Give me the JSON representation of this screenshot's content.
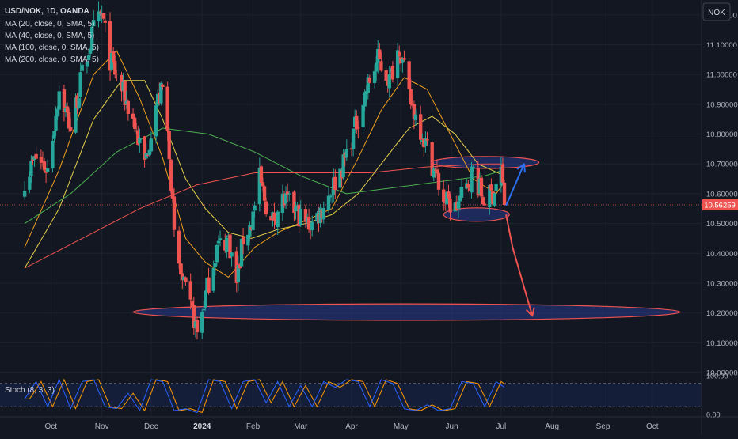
{
  "header": {
    "symbol_line": "USD/NOK, 1D, OANDA",
    "currency_button": "NOK",
    "indicators": [
      "MA (20, close, 0, SMA, 5)",
      "MA (40, close, 0, SMA, 5)",
      "MA (100, close, 0, SMA, 5)",
      "MA (200, close, 0, SMA, 5)"
    ]
  },
  "colors": {
    "background": "#131722",
    "grid": "#1e222d",
    "up": "#26a69a",
    "down": "#ef5350",
    "ma20": "#f0a01e",
    "ma40": "#e6d04a",
    "ma100": "#4caf50",
    "ma200": "#ef5350",
    "zone_fill": "#2a3a8c",
    "arrow_up": "#2e6ff2",
    "arrow_down": "#ef5350",
    "stoch_k": "#2962ff",
    "stoch_d": "#ff9800"
  },
  "chart_data": {
    "type": "candlestick",
    "title": "USD/NOK, 1D, OANDA",
    "y_axis": {
      "min": 10.0,
      "max": 11.25,
      "ticks": [
        11.2,
        11.1,
        11.0,
        10.9,
        10.8,
        10.7,
        10.6,
        10.5,
        10.4,
        10.3,
        10.2,
        10.1,
        10.0
      ],
      "tick_labels": [
        "11.20000",
        "11.10000",
        "11.00000",
        "10.90000",
        "10.80000",
        "10.70000",
        "10.60000",
        "10.50000",
        "10.40000",
        "10.30000",
        "10.20000",
        "10.10000",
        "10.00000"
      ]
    },
    "x_axis": {
      "labels": [
        "Oct",
        "Nov",
        "Dec",
        "2024",
        "Feb",
        "Mar",
        "Apr",
        "May",
        "Jun",
        "Jul",
        "Aug",
        "Sep",
        "Oct"
      ],
      "bold_label": "2024",
      "first_bar_date": "2023-09-15",
      "last_bar_date": "2024-07-03"
    },
    "last_price": "10.56259",
    "last_price_value": 10.56259,
    "price_anchors": [
      [
        "2023-09-15",
        10.65
      ],
      [
        "2023-09-22",
        10.72
      ],
      [
        "2023-09-29",
        10.68
      ],
      [
        "2023-10-06",
        10.95
      ],
      [
        "2023-10-13",
        10.82
      ],
      [
        "2023-10-20",
        11.0
      ],
      [
        "2023-10-27",
        11.15
      ],
      [
        "2023-11-01",
        11.2
      ],
      [
        "2023-11-06",
        11.05
      ],
      [
        "2023-11-13",
        10.95
      ],
      [
        "2023-11-20",
        10.85
      ],
      [
        "2023-11-27",
        10.7
      ],
      [
        "2023-12-04",
        10.9
      ],
      [
        "2023-12-08",
        10.95
      ],
      [
        "2023-12-12",
        10.75
      ],
      [
        "2023-12-15",
        10.45
      ],
      [
        "2023-12-20",
        10.3
      ],
      [
        "2023-12-27",
        10.18
      ],
      [
        "2023-12-29",
        10.13
      ],
      [
        "2024-01-03",
        10.26
      ],
      [
        "2024-01-10",
        10.42
      ],
      [
        "2024-01-17",
        10.45
      ],
      [
        "2024-01-22",
        10.3
      ],
      [
        "2024-01-26",
        10.45
      ],
      [
        "2024-01-31",
        10.5
      ],
      [
        "2024-02-05",
        10.65
      ],
      [
        "2024-02-12",
        10.5
      ],
      [
        "2024-02-19",
        10.58
      ],
      [
        "2024-02-26",
        10.55
      ],
      [
        "2024-03-04",
        10.5
      ],
      [
        "2024-03-08",
        10.5
      ],
      [
        "2024-03-14",
        10.55
      ],
      [
        "2024-03-20",
        10.62
      ],
      [
        "2024-03-27",
        10.7
      ],
      [
        "2024-04-03",
        10.82
      ],
      [
        "2024-04-10",
        10.95
      ],
      [
        "2024-04-17",
        11.05
      ],
      [
        "2024-04-24",
        10.98
      ],
      [
        "2024-04-30",
        11.1
      ],
      [
        "2024-05-06",
        10.92
      ],
      [
        "2024-05-13",
        10.82
      ],
      [
        "2024-05-20",
        10.7
      ],
      [
        "2024-05-27",
        10.58
      ],
      [
        "2024-06-03",
        10.55
      ],
      [
        "2024-06-10",
        10.62
      ],
      [
        "2024-06-14",
        10.68
      ],
      [
        "2024-06-20",
        10.58
      ],
      [
        "2024-06-26",
        10.6
      ],
      [
        "2024-07-01",
        10.68
      ],
      [
        "2024-07-03",
        10.56
      ]
    ],
    "moving_averages": [
      {
        "name": "MA (20, close, 0, SMA, 5)",
        "color_key": "ma20",
        "anchors": [
          [
            "2023-09-15",
            10.42
          ],
          [
            "2023-10-06",
            10.68
          ],
          [
            "2023-10-27",
            11.0
          ],
          [
            "2023-11-10",
            11.08
          ],
          [
            "2023-11-24",
            10.92
          ],
          [
            "2023-12-08",
            10.72
          ],
          [
            "2023-12-22",
            10.45
          ],
          [
            "2024-01-03",
            10.37
          ],
          [
            "2024-01-17",
            10.32
          ],
          [
            "2024-02-02",
            10.42
          ],
          [
            "2024-02-16",
            10.47
          ],
          [
            "2024-03-04",
            10.51
          ],
          [
            "2024-03-20",
            10.55
          ],
          [
            "2024-04-05",
            10.72
          ],
          [
            "2024-04-19",
            10.88
          ],
          [
            "2024-05-03",
            10.99
          ],
          [
            "2024-05-17",
            10.95
          ],
          [
            "2024-05-31",
            10.8
          ],
          [
            "2024-06-14",
            10.65
          ],
          [
            "2024-06-28",
            10.6
          ],
          [
            "2024-07-03",
            10.64
          ]
        ]
      },
      {
        "name": "MA (40, close, 0, SMA, 5)",
        "color_key": "ma40",
        "anchors": [
          [
            "2023-09-15",
            10.35
          ],
          [
            "2023-10-06",
            10.55
          ],
          [
            "2023-10-27",
            10.85
          ],
          [
            "2023-11-13",
            10.98
          ],
          [
            "2023-11-27",
            10.98
          ],
          [
            "2023-12-08",
            10.85
          ],
          [
            "2023-12-22",
            10.65
          ],
          [
            "2024-01-03",
            10.55
          ],
          [
            "2024-01-17",
            10.47
          ],
          [
            "2024-01-31",
            10.45
          ],
          [
            "2024-02-16",
            10.48
          ],
          [
            "2024-03-04",
            10.5
          ],
          [
            "2024-03-20",
            10.53
          ],
          [
            "2024-04-05",
            10.6
          ],
          [
            "2024-04-19",
            10.7
          ],
          [
            "2024-05-06",
            10.82
          ],
          [
            "2024-05-20",
            10.86
          ],
          [
            "2024-06-03",
            10.8
          ],
          [
            "2024-06-17",
            10.7
          ],
          [
            "2024-07-03",
            10.66
          ]
        ]
      },
      {
        "name": "MA (100, close, 0, SMA, 5)",
        "color_key": "ma100",
        "anchors": [
          [
            "2023-09-15",
            10.5
          ],
          [
            "2023-10-13",
            10.6
          ],
          [
            "2023-11-10",
            10.74
          ],
          [
            "2023-12-08",
            10.82
          ],
          [
            "2024-01-05",
            10.8
          ],
          [
            "2024-02-02",
            10.74
          ],
          [
            "2024-03-01",
            10.66
          ],
          [
            "2024-03-29",
            10.6
          ],
          [
            "2024-04-26",
            10.62
          ],
          [
            "2024-05-24",
            10.64
          ],
          [
            "2024-06-21",
            10.66
          ],
          [
            "2024-07-03",
            10.68
          ]
        ]
      },
      {
        "name": "MA (200, close, 0, SMA, 5)",
        "color_key": "ma200",
        "anchors": [
          [
            "2023-09-15",
            10.35
          ],
          [
            "2023-10-20",
            10.45
          ],
          [
            "2023-11-24",
            10.55
          ],
          [
            "2023-12-29",
            10.63
          ],
          [
            "2024-02-02",
            10.67
          ],
          [
            "2024-03-08",
            10.67
          ],
          [
            "2024-04-12",
            10.67
          ],
          [
            "2024-05-17",
            10.69
          ],
          [
            "2024-06-21",
            10.7
          ],
          [
            "2024-07-03",
            10.7
          ]
        ]
      }
    ],
    "zones": [
      {
        "name": "resistance",
        "date_start": "2024-05-20",
        "date_end": "2024-07-24",
        "y": 10.705,
        "height": 0.04
      },
      {
        "name": "support",
        "date_start": "2024-05-27",
        "date_end": "2024-07-06",
        "y": 10.53,
        "height": 0.045
      },
      {
        "name": "target",
        "date_start": "2023-11-20",
        "date_end": "2024-10-18",
        "y": 10.203,
        "height": 0.055
      }
    ],
    "arrows": [
      {
        "name": "bullish-scenario",
        "color_key": "arrow_up",
        "points": [
          [
            "2024-07-04",
            10.56
          ],
          [
            "2024-07-15",
            10.7
          ]
        ]
      },
      {
        "name": "bearish-scenario",
        "color_key": "arrow_down",
        "points": [
          [
            "2024-07-04",
            10.53
          ],
          [
            "2024-07-08",
            10.42
          ],
          [
            "2024-07-20",
            10.19
          ]
        ]
      }
    ],
    "stochastic": {
      "label": "Stoch (8, 3, 3)",
      "ticks": [
        100,
        0
      ],
      "tick_labels": [
        "100.00",
        "0.00"
      ],
      "bands": [
        80,
        20
      ],
      "k_anchors": [
        [
          "2023-09-15",
          40
        ],
        [
          "2023-09-22",
          85
        ],
        [
          "2023-09-29",
          20
        ],
        [
          "2023-10-06",
          90
        ],
        [
          "2023-10-13",
          15
        ],
        [
          "2023-10-20",
          85
        ],
        [
          "2023-10-27",
          90
        ],
        [
          "2023-11-03",
          20
        ],
        [
          "2023-11-10",
          15
        ],
        [
          "2023-11-17",
          55
        ],
        [
          "2023-11-24",
          10
        ],
        [
          "2023-12-01",
          90
        ],
        [
          "2023-12-08",
          85
        ],
        [
          "2023-12-15",
          10
        ],
        [
          "2023-12-22",
          15
        ],
        [
          "2023-12-29",
          5
        ],
        [
          "2024-01-05",
          90
        ],
        [
          "2024-01-12",
          85
        ],
        [
          "2024-01-19",
          15
        ],
        [
          "2024-01-26",
          85
        ],
        [
          "2024-02-02",
          90
        ],
        [
          "2024-02-09",
          30
        ],
        [
          "2024-02-16",
          85
        ],
        [
          "2024-02-23",
          20
        ],
        [
          "2024-03-01",
          75
        ],
        [
          "2024-03-08",
          20
        ],
        [
          "2024-03-15",
          85
        ],
        [
          "2024-03-22",
          70
        ],
        [
          "2024-03-29",
          90
        ],
        [
          "2024-04-05",
          85
        ],
        [
          "2024-04-12",
          20
        ],
        [
          "2024-04-19",
          90
        ],
        [
          "2024-04-26",
          80
        ],
        [
          "2024-05-03",
          15
        ],
        [
          "2024-05-10",
          10
        ],
        [
          "2024-05-17",
          25
        ],
        [
          "2024-05-24",
          10
        ],
        [
          "2024-05-31",
          15
        ],
        [
          "2024-06-07",
          85
        ],
        [
          "2024-06-14",
          80
        ],
        [
          "2024-06-21",
          20
        ],
        [
          "2024-06-28",
          85
        ],
        [
          "2024-07-03",
          70
        ]
      ]
    }
  }
}
